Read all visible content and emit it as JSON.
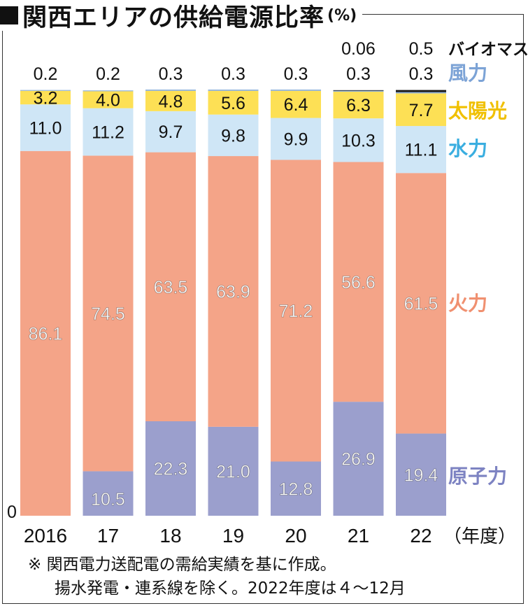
{
  "title": "関西エリアの供給電源比率",
  "unit": "(%)",
  "note_lines": [
    "※ 関西電力送配電の需給実績を基に作成。",
    "揚水発電・連系線を除く。2022年度は４～12月"
  ],
  "colors": {
    "原子力": "#9b9fcd",
    "火力": "#f4a488",
    "水力": "#cfe6f6",
    "太陽光": "#fde055",
    "風力": "#8fb1d9",
    "バイオマス": "#1a1a1a"
  },
  "label_colors": {
    "原子力": "#7d83c2",
    "火力": "#f09070",
    "水力": "#3aaee0",
    "太陽光": "#f0c000",
    "風力": "#7ca3d6",
    "バイオマス": "#111111"
  },
  "chart_data": {
    "type": "bar",
    "stacked": true,
    "categories": [
      "2016",
      "17",
      "18",
      "19",
      "20",
      "21",
      "22"
    ],
    "x_unit_label": "（年度）",
    "y_zero_label": "0",
    "ylim": [
      0,
      100.6
    ],
    "series": [
      {
        "name": "原子力",
        "values": [
          0,
          10.5,
          22.3,
          21.0,
          12.8,
          26.9,
          19.4
        ],
        "labels": [
          "",
          "10.5",
          "22.3",
          "21.0",
          "12.8",
          "26.9",
          "19.4"
        ]
      },
      {
        "name": "火力",
        "values": [
          86.1,
          74.5,
          63.5,
          63.9,
          71.2,
          56.6,
          61.5
        ],
        "labels": [
          "86.1",
          "74.5",
          "63.5",
          "63.9",
          "71.2",
          "56.6",
          "61.5"
        ]
      },
      {
        "name": "水力",
        "values": [
          11.0,
          11.2,
          9.7,
          9.8,
          9.9,
          10.3,
          11.1
        ],
        "labels": [
          "11.0",
          "11.2",
          "9.7",
          "9.8",
          "9.9",
          "10.3",
          "11.1"
        ]
      },
      {
        "name": "太陽光",
        "values": [
          3.2,
          4.0,
          4.8,
          5.6,
          6.4,
          6.3,
          7.7
        ],
        "labels": [
          "3.2",
          "4.0",
          "4.8",
          "5.6",
          "6.4",
          "6.3",
          "7.7"
        ]
      },
      {
        "name": "風力",
        "values": [
          0.2,
          0.2,
          0.3,
          0.3,
          0.3,
          0.3,
          0.3
        ],
        "labels": [
          "0.2",
          "0.2",
          "0.3",
          "0.3",
          "0.3",
          "0.3",
          "0.3"
        ]
      },
      {
        "name": "バイオマス",
        "values": [
          0,
          0,
          0,
          0,
          0,
          0.06,
          0.5
        ],
        "labels": [
          "",
          "",
          "",
          "",
          "",
          "0.06",
          "0.5"
        ]
      }
    ]
  }
}
